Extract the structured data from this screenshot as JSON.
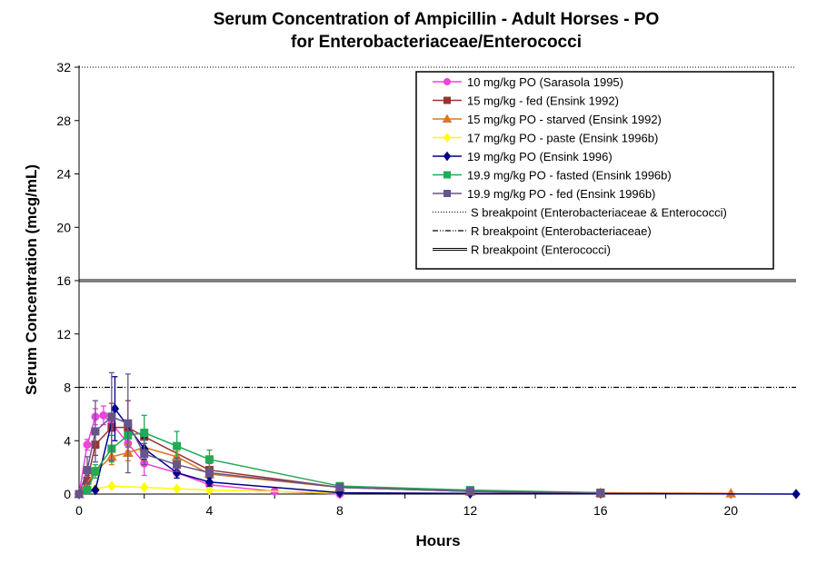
{
  "chart_data": {
    "type": "line",
    "title": "Serum Concentration of Ampicillin  - Adult Horses - PO",
    "subtitle": "for Enterobacteriaceae/Enterococci",
    "xlabel": "Hours",
    "ylabel": "Serum Concentration (mcg/mL)",
    "xlim": [
      0,
      22
    ],
    "ylim": [
      0,
      32
    ],
    "x_ticks": [
      "0",
      "4",
      "8",
      "12",
      "16",
      "20"
    ],
    "y_ticks": [
      "0",
      "4",
      "8",
      "12",
      "16",
      "20",
      "24",
      "28",
      "32"
    ],
    "legend_position": "top-right",
    "series": [
      {
        "name": "10 mg/kg PO (Sarasola 1995)",
        "color": "#ee44dd",
        "marker": "circle",
        "x": [
          0,
          0.25,
          0.5,
          0.75,
          1,
          1.5,
          2,
          3,
          4,
          6,
          8
        ],
        "y": [
          0,
          3.7,
          5.8,
          5.9,
          5.3,
          3.8,
          2.3,
          1.6,
          0.7,
          0.2,
          0
        ],
        "err": [
          0,
          0.4,
          0.6,
          0.7,
          0.6,
          0.6,
          0.9,
          0.4,
          0.3,
          0,
          0
        ]
      },
      {
        "name": "15 mg/kg - fed (Ensink 1992)",
        "color": "#993333",
        "marker": "square",
        "x": [
          0,
          0.25,
          0.5,
          1,
          1.5,
          2,
          4,
          8,
          12,
          16
        ],
        "y": [
          0,
          1.0,
          3.7,
          5.0,
          5.0,
          4.3,
          1.8,
          0.5,
          0.2,
          0.05
        ],
        "err": [
          0,
          0.4,
          0.8,
          1.8,
          2.0,
          0.5,
          0.5,
          0,
          0,
          0
        ]
      },
      {
        "name": "15 mg/kg PO - starved (Ensink 1992)",
        "color": "#dd7722",
        "marker": "triangle",
        "x": [
          0,
          0.5,
          1,
          1.5,
          2,
          3,
          4,
          8,
          12,
          16,
          20
        ],
        "y": [
          0,
          1.7,
          2.8,
          3.1,
          3.5,
          2.8,
          1.5,
          0.5,
          0.2,
          0.1,
          0.05
        ],
        "err": [
          0,
          0.3,
          0.6,
          0.6,
          1.0,
          0.4,
          0.3,
          0,
          0,
          0,
          0
        ]
      },
      {
        "name": "17 mg/kg PO - paste (Ensink 1996b)",
        "color": "#ffff00",
        "marker": "diamond",
        "x": [
          0,
          0.5,
          1,
          2,
          3,
          4,
          8
        ],
        "y": [
          0,
          0.4,
          0.6,
          0.5,
          0.4,
          0.3,
          0.1
        ],
        "err": [
          0,
          0,
          0,
          0,
          0,
          0,
          0
        ]
      },
      {
        "name": "19 mg/kg PO (Ensink 1996)",
        "color": "#000088",
        "marker": "diamond",
        "x": [
          0,
          0.5,
          1.1,
          2,
          3,
          4,
          8,
          12,
          22
        ],
        "y": [
          0,
          0.3,
          6.4,
          3.4,
          1.6,
          0.9,
          0.1,
          0.05,
          0
        ],
        "err": [
          0,
          0,
          2.4,
          0.8,
          0.4,
          0.3,
          0,
          0,
          0
        ]
      },
      {
        "name": "19.9 mg/kg PO - fasted (Ensink 1996b)",
        "color": "#22aa55",
        "marker": "square",
        "x": [
          0,
          0.25,
          0.5,
          1,
          1.5,
          2,
          3,
          4,
          8,
          12,
          16
        ],
        "y": [
          0,
          0.3,
          1.7,
          3.4,
          4.4,
          4.6,
          3.6,
          2.6,
          0.6,
          0.3,
          0.1
        ],
        "err": [
          0,
          0.2,
          0.5,
          1.0,
          0.9,
          1.3,
          1.1,
          0.7,
          0,
          0,
          0
        ]
      },
      {
        "name": "19.9 mg/kg PO - fed (Ensink 1996b)",
        "color": "#665588",
        "marker": "square",
        "x": [
          0,
          0.25,
          0.5,
          1,
          1.5,
          2,
          3,
          4,
          8,
          12,
          16
        ],
        "y": [
          0,
          1.8,
          4.7,
          5.8,
          5.3,
          3.0,
          2.2,
          1.6,
          0.5,
          0.2,
          0.1
        ],
        "err": [
          0,
          1.0,
          2.3,
          3.3,
          3.7,
          0.8,
          0.5,
          0.3,
          0,
          0,
          0
        ]
      }
    ],
    "breakpoints": [
      {
        "name": "S breakpoint (Enterobacteriaceae & Enterococci)",
        "value": 32,
        "style": "dotted"
      },
      {
        "name": "R breakpoint (Enterobacteriaceae)",
        "value": 8,
        "style": "dash-dot-dot"
      },
      {
        "name": "R breakpoint (Enterococci)",
        "value": 16,
        "style": "double"
      }
    ]
  }
}
